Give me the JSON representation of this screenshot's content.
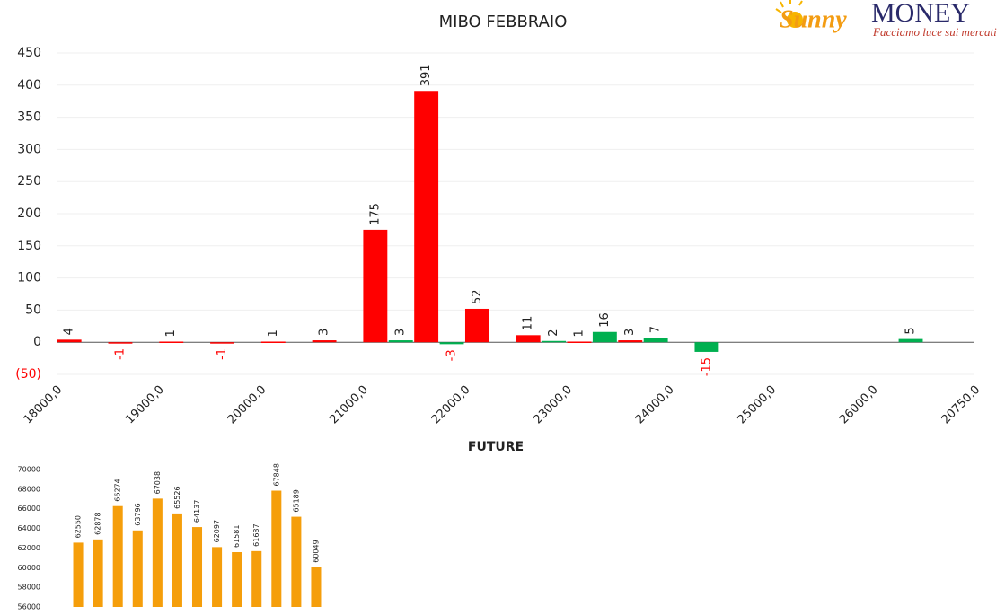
{
  "logo": {
    "brand": "Sunny",
    "name": "MONEY",
    "tagline": "Facciamo luce sui mercati"
  },
  "chart_data": [
    {
      "type": "bar",
      "title": "MIBO FEBBRAIO",
      "xlabel": "FUTURE",
      "categories": [
        "18000,0",
        null,
        null,
        null,
        "19000,0",
        null,
        null,
        null,
        "20000,0",
        null,
        null,
        null,
        "21000,0",
        null,
        null,
        null,
        "22000,0",
        null,
        null,
        null,
        "23000,0",
        null,
        null,
        null,
        "24000,0",
        null,
        null,
        null,
        "25000,0",
        null,
        null,
        null,
        "26000,0",
        null,
        null,
        null,
        "20750,0"
      ],
      "series": [
        {
          "color": "#ff0000",
          "values": [
            4,
            null,
            -1,
            null,
            1,
            null,
            -1,
            null,
            1,
            null,
            3,
            null,
            175,
            null,
            391,
            null,
            52,
            null,
            11,
            null,
            1,
            null,
            3,
            null,
            null,
            null,
            null,
            null,
            null,
            null,
            null,
            null,
            null,
            null,
            null,
            null,
            null
          ]
        },
        {
          "color": "#00b050",
          "values": [
            null,
            null,
            null,
            null,
            null,
            null,
            null,
            null,
            null,
            null,
            null,
            null,
            null,
            3,
            null,
            -3,
            null,
            null,
            null,
            2,
            null,
            16,
            null,
            7,
            null,
            -15,
            null,
            null,
            null,
            null,
            null,
            null,
            null,
            5,
            null,
            null,
            null
          ]
        }
      ],
      "ylim": [
        -50,
        450
      ],
      "yticks": [
        {
          "value": -50,
          "label": "(50)"
        },
        0,
        50,
        100,
        150,
        200,
        250,
        300,
        350,
        400,
        450
      ],
      "grid": true,
      "negative_label_color": "#ff0000"
    },
    {
      "type": "bar",
      "color": "#f59e0b",
      "values": [
        62550,
        62878,
        66274,
        63796,
        67038,
        65526,
        64137,
        62097,
        61581,
        61687,
        67848,
        65189,
        60049
      ],
      "ylim": [
        56000,
        70000
      ],
      "yticks": [
        56000,
        58000,
        60000,
        62000,
        64000,
        66000,
        68000,
        70000
      ],
      "grid": false
    }
  ]
}
